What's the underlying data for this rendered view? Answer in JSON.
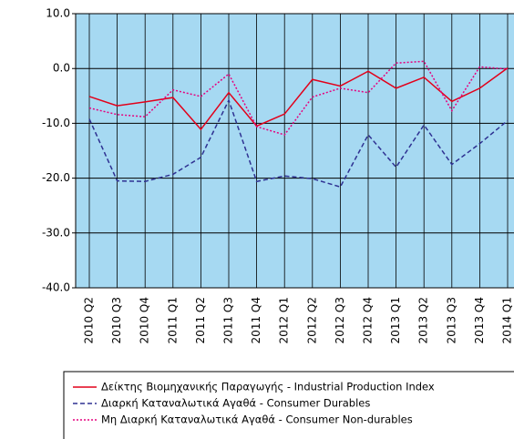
{
  "chart_data": {
    "type": "line",
    "categories": [
      "2010 Q2",
      "2010 Q3",
      "2010 Q4",
      "2011 Q1",
      "2011 Q2",
      "2011 Q3",
      "2011 Q4",
      "2012 Q1",
      "2012 Q2",
      "2012 Q3",
      "2012 Q4",
      "2013 Q1",
      "2013 Q2",
      "2013 Q3",
      "2013 Q4",
      "2014 Q1"
    ],
    "series": [
      {
        "name": "Δείκτης Βιομηχανικής Παραγωγής - Industrial Production Index",
        "color": "#e2001a",
        "dash": "solid",
        "values": [
          -5.1,
          -6.8,
          -6.1,
          -5.3,
          -11.1,
          -4.4,
          -10.5,
          -8.3,
          -2.0,
          -3.2,
          -0.5,
          -3.6,
          -1.6,
          -6.0,
          -3.6,
          0.1
        ]
      },
      {
        "name": "Διαρκή Καταναλωτικά Αγαθά - Consumer Durables",
        "color": "#2e3192",
        "dash": "dashed",
        "values": [
          -9.2,
          -20.5,
          -20.6,
          -19.3,
          -16.2,
          -5.8,
          -20.6,
          -19.6,
          -20.1,
          -21.6,
          -12.1,
          -18.0,
          -10.3,
          -17.5,
          -13.7,
          -9.5
        ]
      },
      {
        "name": "Μη Διαρκή Καταναλωτικά Αγαθά - Consumer Non-durables",
        "color": "#e6007e",
        "dash": "dotted",
        "values": [
          -7.2,
          -8.4,
          -8.8,
          -3.9,
          -5.1,
          -1.0,
          -10.6,
          -12.1,
          -5.2,
          -3.6,
          -4.4,
          1.0,
          1.3,
          -7.7,
          0.3,
          -0.1
        ]
      }
    ],
    "ylim": [
      -40,
      10
    ],
    "yticks": [
      {
        "value": 10,
        "label": "10.0"
      },
      {
        "value": 0,
        "label": "0.0"
      },
      {
        "value": -10,
        "label": "-10.0"
      },
      {
        "value": -20,
        "label": "-20.0"
      },
      {
        "value": -30,
        "label": "-30.0"
      },
      {
        "value": -40,
        "label": "-40.0"
      }
    ],
    "grid": true,
    "legend": "bottom",
    "background": "#a6d9f2"
  }
}
